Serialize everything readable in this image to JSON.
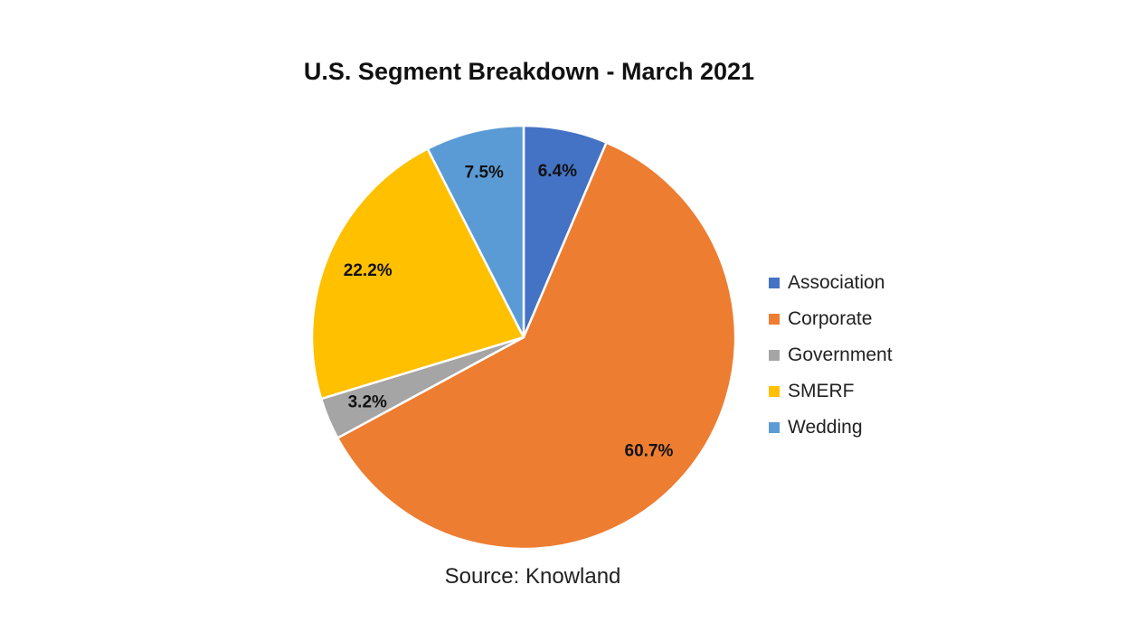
{
  "chart_data": {
    "type": "pie",
    "title": "U.S. Segment Breakdown - March 2021",
    "source": "Source: Knowland",
    "legend_position": "right",
    "start_angle_deg": 0,
    "direction": "clockwise",
    "slices": [
      {
        "name": "Association",
        "value": 6.4,
        "label": "6.4%",
        "color": "#4472C4"
      },
      {
        "name": "Corporate",
        "value": 60.7,
        "label": "60.7%",
        "color": "#ED7D31"
      },
      {
        "name": "Government",
        "value": 3.2,
        "label": "3.2%",
        "color": "#A5A5A5"
      },
      {
        "name": "SMERF",
        "value": 22.2,
        "label": "22.2%",
        "color": "#FFC000"
      },
      {
        "name": "Wedding",
        "value": 7.5,
        "label": "7.5%",
        "color": "#5B9BD5"
      }
    ]
  }
}
